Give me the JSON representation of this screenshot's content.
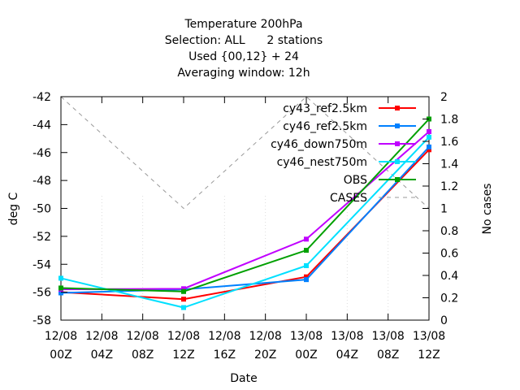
{
  "chart_data": {
    "type": "line",
    "title": [
      "Temperature 200hPa",
      "Selection: ALL      2 stations",
      "Used {00,12} + 24",
      "Averaging window: 12h"
    ],
    "xlabel": "Date",
    "ylabel": "deg C",
    "y2label": "No cases",
    "x_ticks": [
      [
        "12/08",
        "00Z"
      ],
      [
        "12/08",
        "04Z"
      ],
      [
        "12/08",
        "08Z"
      ],
      [
        "12/08",
        "12Z"
      ],
      [
        "12/08",
        "16Z"
      ],
      [
        "12/08",
        "20Z"
      ],
      [
        "13/08",
        "00Z"
      ],
      [
        "13/08",
        "04Z"
      ],
      [
        "13/08",
        "08Z"
      ],
      [
        "13/08",
        "12Z"
      ]
    ],
    "x": [
      0,
      12,
      24,
      36
    ],
    "x_range": [
      0,
      36
    ],
    "ylim": [
      -58,
      -42
    ],
    "y_ticks": [
      -42,
      -44,
      -46,
      -48,
      -50,
      -52,
      -54,
      -56,
      -58
    ],
    "y2lim": [
      0,
      2
    ],
    "y2_ticks": [
      "2",
      "1.8",
      "1.6",
      "1.4",
      "1.2",
      "1",
      "0.8",
      "0.6",
      "0.4",
      "0.2",
      "0"
    ],
    "grid": false,
    "legend_position": "top-right",
    "series": [
      {
        "name": "cy43_ref2.5km",
        "color": "#ff0000",
        "values": [
          -56.0,
          -56.5,
          -54.9,
          -45.8
        ]
      },
      {
        "name": "cy46_ref2.5km",
        "color": "#0080ff",
        "values": [
          -56.05,
          -55.8,
          -55.1,
          -45.6
        ]
      },
      {
        "name": "cy46_down750m",
        "color": "#c000ff",
        "values": [
          -55.8,
          -55.75,
          -52.2,
          -44.5
        ]
      },
      {
        "name": "cy46_nest750m",
        "color": "#00e0ff",
        "values": [
          -55.0,
          -57.1,
          -54.1,
          -44.9
        ]
      },
      {
        "name": "OBS",
        "color": "#00a000",
        "values": [
          -55.7,
          -55.95,
          -53.0,
          -43.6
        ]
      }
    ],
    "cases": {
      "name": "CASES",
      "color": "#999999",
      "values": [
        2,
        1,
        2,
        1
      ]
    }
  }
}
